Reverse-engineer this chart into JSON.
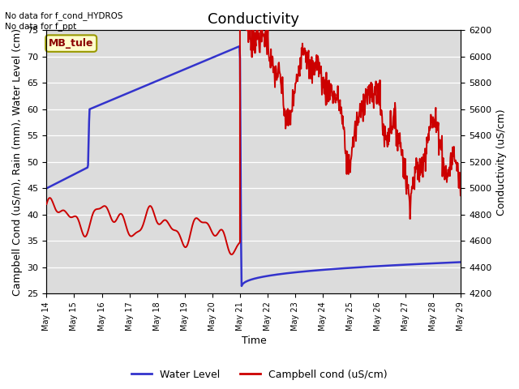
{
  "title": "Conductivity",
  "xlabel": "Time",
  "ylabel_left": "Campbell Cond (uS/m), Rain (mm), Water Level (cm)",
  "ylabel_right": "Conductivity (uS/cm)",
  "ylim_left": [
    25,
    75
  ],
  "ylim_right": [
    4200,
    6200
  ],
  "yticks_left": [
    25,
    30,
    35,
    40,
    45,
    50,
    55,
    60,
    65,
    70,
    75
  ],
  "yticks_right": [
    4200,
    4400,
    4600,
    4800,
    5000,
    5200,
    5400,
    5600,
    5800,
    6000,
    6200
  ],
  "annotation_text": "No data for f_cond_HYDROS\nNo data for f_ppt",
  "box_label": "MB_tule",
  "plot_bg_color": "#dcdcdc",
  "water_level_color": "#3333cc",
  "campbell_cond_color": "#cc0000",
  "title_fontsize": 13,
  "axis_label_fontsize": 9,
  "tick_fontsize": 8,
  "xtick_labels": [
    "May 14",
    "May 15",
    "May 16",
    "May 17",
    "May 18",
    "May 19",
    "May 20",
    "May 21",
    "May 22",
    "May 23",
    "May 24",
    "May 25",
    "May 26",
    "May 27",
    "May 28",
    "May 29"
  ]
}
